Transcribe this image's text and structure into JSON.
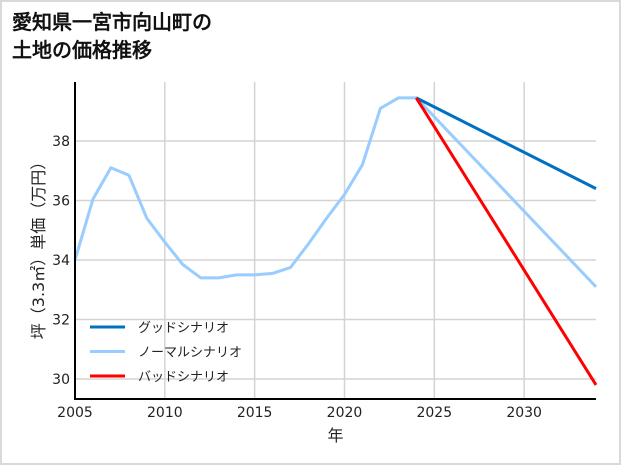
{
  "title": {
    "line1": "愛知県一宮市向山町の",
    "line2": "土地の価格推移"
  },
  "chart_data": {
    "type": "line",
    "title": "愛知県一宮市向山町の土地の価格推移",
    "xlabel": "年",
    "ylabel": "坪（3.3㎡）単価（万円）",
    "xlim": [
      2005,
      2034
    ],
    "ylim": [
      29.3,
      40.0
    ],
    "xticks": [
      2005,
      2010,
      2015,
      2020,
      2025,
      2030
    ],
    "yticks": [
      30,
      32,
      34,
      36,
      38
    ],
    "grid": true,
    "legend_position": "lower left",
    "series": [
      {
        "name": "グッドシナリオ",
        "color": "#0070c0",
        "x": [
          2024,
          2034
        ],
        "values": [
          39.45,
          36.4
        ]
      },
      {
        "name": "ノーマルシナリオ",
        "color": "#99ccff",
        "x": [
          2005,
          2006,
          2007,
          2008,
          2009,
          2010,
          2011,
          2012,
          2013,
          2014,
          2015,
          2016,
          2017,
          2018,
          2019,
          2020,
          2021,
          2022,
          2023,
          2024,
          2034
        ],
        "values": [
          34.0,
          36.05,
          37.1,
          36.85,
          35.4,
          34.6,
          33.85,
          33.4,
          33.4,
          33.5,
          33.5,
          33.55,
          33.75,
          34.55,
          35.4,
          36.2,
          37.2,
          39.1,
          39.45,
          39.45,
          33.1
        ]
      },
      {
        "name": "バッドシナリオ",
        "color": "#ff0000",
        "x": [
          2024,
          2034
        ],
        "values": [
          39.45,
          29.8
        ]
      }
    ]
  }
}
